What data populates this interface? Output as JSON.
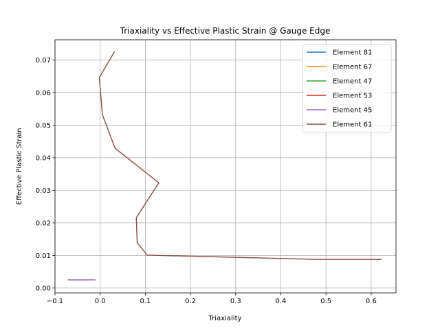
{
  "chart_data": {
    "type": "line",
    "title": "Triaxiality vs Effective Plastic Strain @ Gauge Edge",
    "xlabel": "Triaxiality",
    "ylabel": "Effective Plastic Strain",
    "xlim": [
      -0.1,
      0.655
    ],
    "ylim": [
      -0.0015,
      0.0762
    ],
    "xticks": [
      -0.1,
      0.0,
      0.1,
      0.2,
      0.3,
      0.4,
      0.5,
      0.6
    ],
    "xtick_labels": [
      "−0.1",
      "0.0",
      "0.1",
      "0.2",
      "0.3",
      "0.4",
      "0.5",
      "0.6"
    ],
    "yticks": [
      0.0,
      0.01,
      0.02,
      0.03,
      0.04,
      0.05,
      0.06,
      0.07
    ],
    "ytick_labels": [
      "0.00",
      "0.01",
      "0.02",
      "0.03",
      "0.04",
      "0.05",
      "0.06",
      "0.07"
    ],
    "grid": true,
    "legend_position": "top-right",
    "series": [
      {
        "name": "Element 81",
        "color": "#1f77b4",
        "x": [],
        "y": []
      },
      {
        "name": "Element 67",
        "color": "#ff7f0e",
        "x": [],
        "y": []
      },
      {
        "name": "Element 47",
        "color": "#2ca02c",
        "x": [],
        "y": []
      },
      {
        "name": "Element 53",
        "color": "#d62728",
        "x": [],
        "y": []
      },
      {
        "name": "Element 45",
        "color": "#9467bd",
        "x": [
          -0.072,
          -0.01
        ],
        "y": [
          0.0025,
          0.0025
        ]
      },
      {
        "name": "Element 61",
        "color": "#8c564b",
        "x": [
          0.623,
          0.478,
          0.104,
          0.082,
          0.08,
          0.13,
          0.033,
          0.005,
          -0.002,
          0.032
        ],
        "y": [
          0.0088,
          0.0088,
          0.0101,
          0.0139,
          0.0216,
          0.0323,
          0.0429,
          0.0532,
          0.0646,
          0.0726
        ]
      }
    ]
  }
}
